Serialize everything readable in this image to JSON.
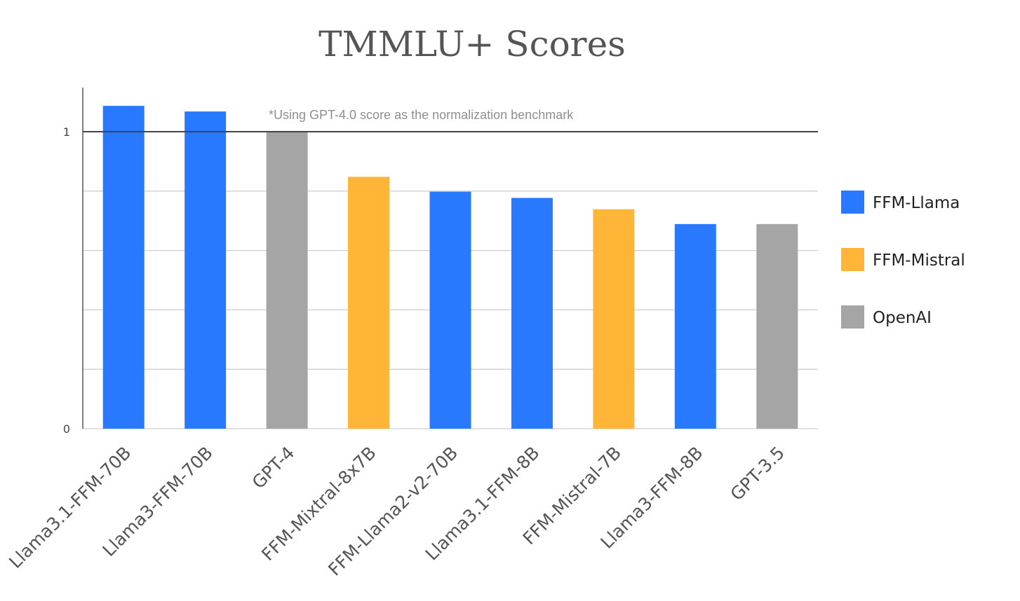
{
  "chart_data": {
    "type": "bar",
    "title": "TMMLU+ Scores",
    "annotation": "*Using GPT-4.0 score as the normalization benchmark",
    "xlabel": "",
    "ylabel": "",
    "ylim": [
      0,
      1.15
    ],
    "yticks": [
      0,
      0.2,
      0.4,
      0.6,
      0.8,
      1
    ],
    "ytick_labels": [
      "0",
      "",
      "",
      "",
      "",
      "1"
    ],
    "reference_line": 1,
    "grid": true,
    "legend_position": "right",
    "categories": [
      "Llama3.1-FFM-70B",
      "Llama3-FFM-70B",
      "GPT-4",
      "FFM-Mixtral-8x7B",
      "FFM-Llama2-v2-70B",
      "Llama3.1-FFM-8B",
      "FFM-Mistral-7B",
      "Llama3-FFM-8B",
      "GPT-3.5"
    ],
    "values": [
      1.087,
      1.068,
      1.0,
      0.848,
      0.798,
      0.777,
      0.739,
      0.689,
      0.689
    ],
    "groups": [
      "FFM-Llama",
      "FFM-Llama",
      "OpenAI",
      "FFM-Mistral",
      "FFM-Llama",
      "FFM-Llama",
      "FFM-Mistral",
      "FFM-Llama",
      "OpenAI"
    ],
    "legend": [
      {
        "name": "FFM-Llama",
        "color": "#2979ff"
      },
      {
        "name": "FFM-Mistral",
        "color": "#ffb537"
      },
      {
        "name": "OpenAI",
        "color": "#a5a5a5"
      }
    ]
  }
}
